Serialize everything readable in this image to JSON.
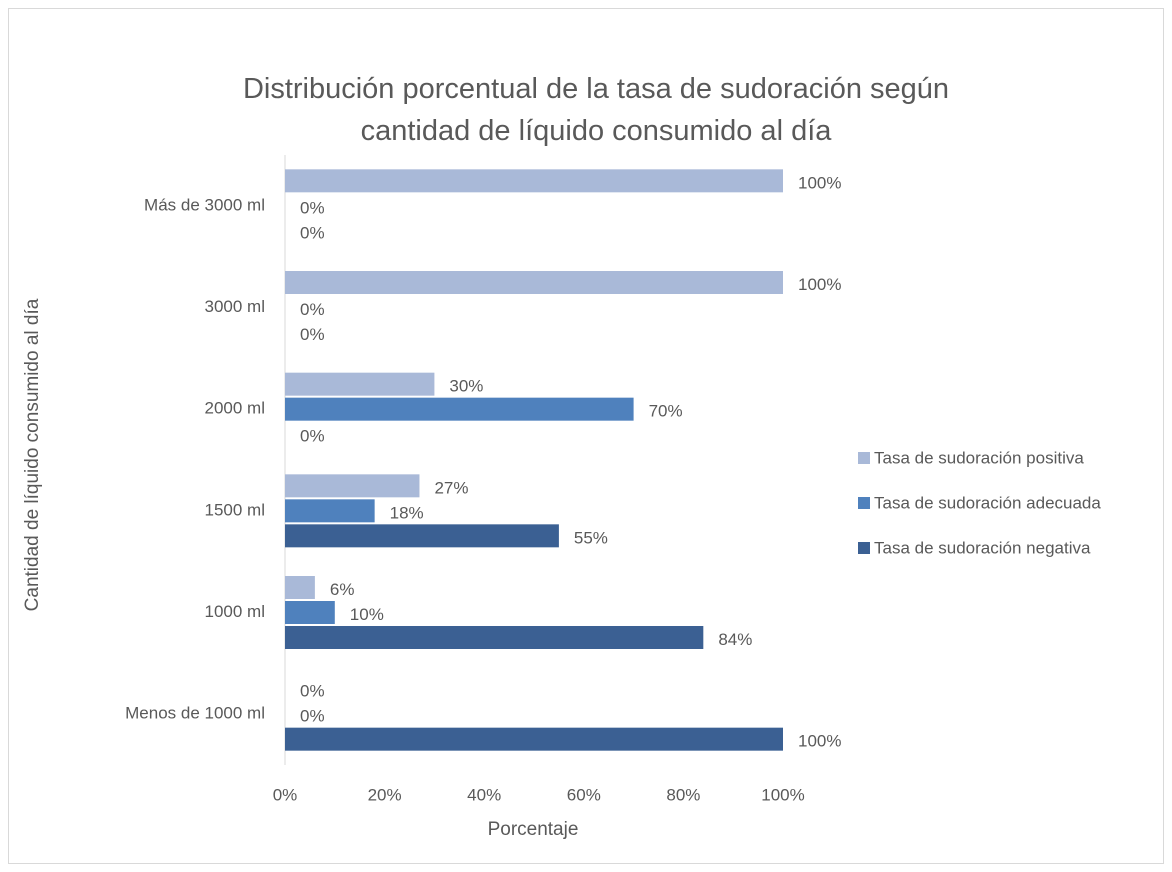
{
  "chart_data": {
    "type": "hbar",
    "title": "Distribución porcentual de la tasa de sudoración según cantidad de líquido consumido al día",
    "x_label": "Porcentaje",
    "y_label": "Cantidad de líquido consumido al día",
    "categories": [
      "Más de 3000 ml",
      "3000 ml",
      "2000 ml",
      "1500 ml",
      "1000 ml",
      "Menos de 1000 ml"
    ],
    "series": [
      {
        "name": "Tasa de sudoración positiva",
        "color": "#a9b9d8",
        "values": [
          100,
          100,
          30,
          27,
          6,
          0
        ],
        "value_labels": [
          "100%",
          "100%",
          "30%",
          "27%",
          "6%",
          "0%"
        ]
      },
      {
        "name": "Tasa de sudoración adecuada",
        "color": "#4f81bd",
        "values": [
          0,
          0,
          70,
          18,
          10,
          0
        ],
        "value_labels": [
          "0%",
          "0%",
          "70%",
          "18%",
          "10%",
          "0%"
        ]
      },
      {
        "name": "Tasa de sudoración negativa",
        "color": "#3b6093",
        "values": [
          0,
          0,
          0,
          55,
          84,
          100
        ],
        "value_labels": [
          "0%",
          "0%",
          "0%",
          "55%",
          "84%",
          "100%"
        ]
      }
    ],
    "xlim": [
      0,
      100
    ],
    "xticks": [
      {
        "value": 0,
        "label": "0%"
      },
      {
        "value": 20,
        "label": "20%"
      },
      {
        "value": 40,
        "label": "40%"
      },
      {
        "value": 60,
        "label": "60%"
      },
      {
        "value": 80,
        "label": "80%"
      },
      {
        "value": 100,
        "label": "100%"
      }
    ],
    "legend": "right"
  }
}
